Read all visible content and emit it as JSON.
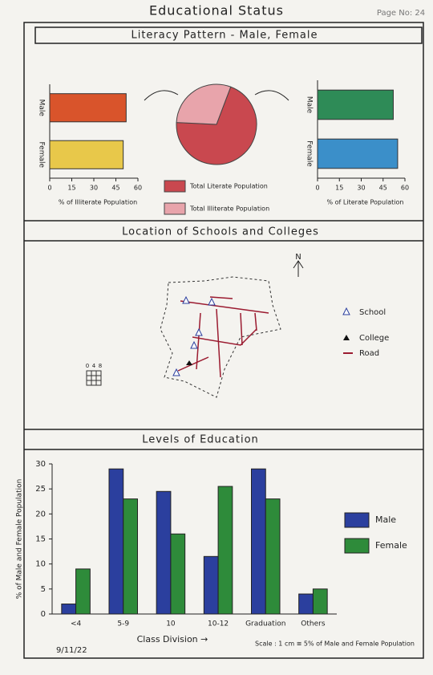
{
  "header": {
    "title": "Educational Status",
    "page": "Page No: 24"
  },
  "sections": [
    "Literacy Pattern - Male, Female",
    "Location of Schools and Colleges",
    "Levels of Education"
  ],
  "chart_data": [
    {
      "type": "hbar",
      "categories": [
        "Male",
        "Female"
      ],
      "values": [
        52,
        50
      ],
      "colors": [
        "#d9542b",
        "#e8c84a"
      ],
      "xlabel": "% of Illiterate Population",
      "xlim": [
        0,
        60
      ],
      "xticks": [
        0,
        15,
        30,
        45,
        60
      ]
    },
    {
      "type": "pie",
      "labels": [
        "Total Literate Population",
        "Total Illiterate Population"
      ],
      "values": [
        70,
        30
      ],
      "colors": [
        "#c9484f",
        "#e8a4ab"
      ]
    },
    {
      "type": "hbar",
      "categories": [
        "Male",
        "Female"
      ],
      "values": [
        52,
        55
      ],
      "colors": [
        "#2e8b57",
        "#3b8fc9"
      ],
      "xlabel": "% of Literate Population",
      "xlim": [
        0,
        60
      ],
      "xticks": [
        0,
        15,
        30,
        45,
        60
      ]
    },
    {
      "type": "grouped",
      "categories": [
        "<4",
        "5-9",
        "10",
        "10-12",
        "Graduation",
        "Others"
      ],
      "series": [
        {
          "name": "Male",
          "color": "#2b3f9e",
          "values": [
            2,
            29,
            24.5,
            11.5,
            29,
            4
          ]
        },
        {
          "name": "Female",
          "color": "#2e8b3a",
          "values": [
            9,
            23,
            16,
            25.5,
            23,
            5
          ]
        }
      ],
      "ylabel": "% of Male and Female Population",
      "xlabel": "Class Division →",
      "note": "Scale : 1 cm ≅ 5% of Male and Female Population",
      "ylim": [
        0,
        30
      ],
      "yticks": [
        0,
        5,
        10,
        15,
        20,
        25,
        30
      ]
    }
  ],
  "map": {
    "north": "N",
    "legend": [
      "School",
      "College",
      "Road"
    ],
    "scale_labels": [
      "0",
      "4",
      "8"
    ]
  },
  "signature": "9/11/22"
}
